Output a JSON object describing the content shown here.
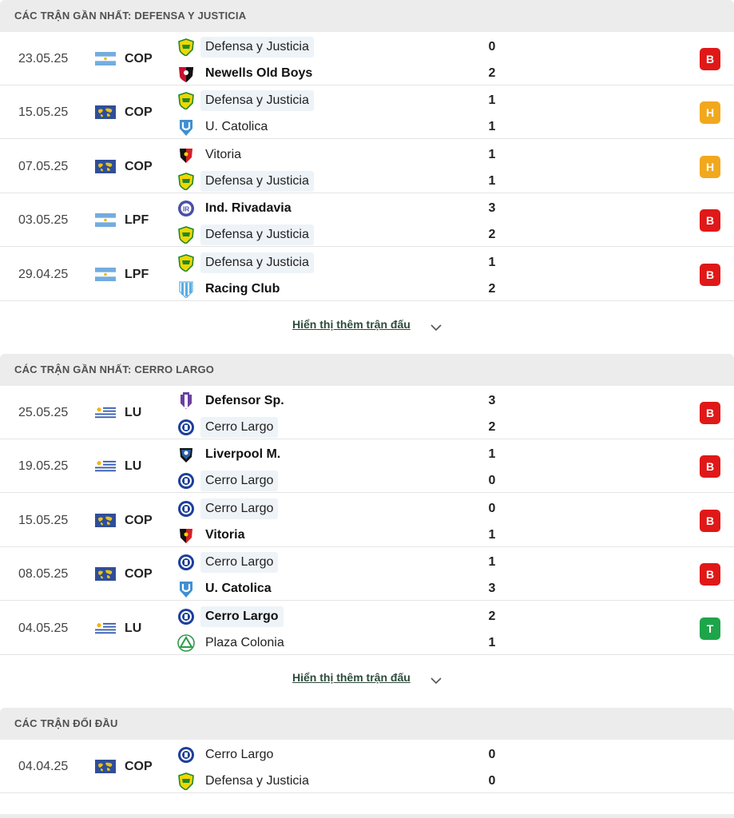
{
  "sections": [
    {
      "title": "CÁC TRẬN GẦN NHẤT: DEFENSA Y JUSTICIA",
      "show_more": "Hiển thị thêm trận đấu",
      "matches": [
        {
          "date": "23.05.25",
          "flag": "argentina-flag",
          "comp": "COP",
          "home": {
            "name": "Defensa y Justicia",
            "logo": "defensa-logo",
            "focus": true,
            "winner": false
          },
          "away": {
            "name": "Newells Old Boys",
            "logo": "newells-logo",
            "focus": false,
            "winner": true
          },
          "home_score": "0",
          "away_score": "2",
          "result": "B"
        },
        {
          "date": "15.05.25",
          "flag": "world-flag",
          "comp": "COP",
          "home": {
            "name": "Defensa y Justicia",
            "logo": "defensa-logo",
            "focus": true,
            "winner": false
          },
          "away": {
            "name": "U. Catolica",
            "logo": "catolica-logo",
            "focus": false,
            "winner": false
          },
          "home_score": "1",
          "away_score": "1",
          "result": "H"
        },
        {
          "date": "07.05.25",
          "flag": "world-flag",
          "comp": "COP",
          "home": {
            "name": "Vitoria",
            "logo": "vitoria-logo",
            "focus": false,
            "winner": false
          },
          "away": {
            "name": "Defensa y Justicia",
            "logo": "defensa-logo",
            "focus": true,
            "winner": false
          },
          "home_score": "1",
          "away_score": "1",
          "result": "H"
        },
        {
          "date": "03.05.25",
          "flag": "argentina-flag",
          "comp": "LPF",
          "home": {
            "name": "Ind. Rivadavia",
            "logo": "rivadavia-logo",
            "focus": false,
            "winner": true
          },
          "away": {
            "name": "Defensa y Justicia",
            "logo": "defensa-logo",
            "focus": true,
            "winner": false
          },
          "home_score": "3",
          "away_score": "2",
          "result": "B"
        },
        {
          "date": "29.04.25",
          "flag": "argentina-flag",
          "comp": "LPF",
          "home": {
            "name": "Defensa y Justicia",
            "logo": "defensa-logo",
            "focus": true,
            "winner": false
          },
          "away": {
            "name": "Racing Club",
            "logo": "racing-logo",
            "focus": false,
            "winner": true
          },
          "home_score": "1",
          "away_score": "2",
          "result": "B"
        }
      ]
    },
    {
      "title": "CÁC TRẬN GẦN NHẤT: CERRO LARGO",
      "show_more": "Hiển thị thêm trận đấu",
      "matches": [
        {
          "date": "25.05.25",
          "flag": "uruguay-flag",
          "comp": "LU",
          "home": {
            "name": "Defensor Sp.",
            "logo": "defensor-logo",
            "focus": false,
            "winner": true
          },
          "away": {
            "name": "Cerro Largo",
            "logo": "cerro-logo",
            "focus": true,
            "winner": false
          },
          "home_score": "3",
          "away_score": "2",
          "result": "B"
        },
        {
          "date": "19.05.25",
          "flag": "uruguay-flag",
          "comp": "LU",
          "home": {
            "name": "Liverpool M.",
            "logo": "liverpool-logo",
            "focus": false,
            "winner": true
          },
          "away": {
            "name": "Cerro Largo",
            "logo": "cerro-logo",
            "focus": true,
            "winner": false
          },
          "home_score": "1",
          "away_score": "0",
          "result": "B"
        },
        {
          "date": "15.05.25",
          "flag": "world-flag",
          "comp": "COP",
          "home": {
            "name": "Cerro Largo",
            "logo": "cerro-logo",
            "focus": true,
            "winner": false
          },
          "away": {
            "name": "Vitoria",
            "logo": "vitoria-logo",
            "focus": false,
            "winner": true
          },
          "home_score": "0",
          "away_score": "1",
          "result": "B"
        },
        {
          "date": "08.05.25",
          "flag": "world-flag",
          "comp": "COP",
          "home": {
            "name": "Cerro Largo",
            "logo": "cerro-logo",
            "focus": true,
            "winner": false
          },
          "away": {
            "name": "U. Catolica",
            "logo": "catolica-logo",
            "focus": false,
            "winner": true
          },
          "home_score": "1",
          "away_score": "3",
          "result": "B"
        },
        {
          "date": "04.05.25",
          "flag": "uruguay-flag",
          "comp": "LU",
          "home": {
            "name": "Cerro Largo",
            "logo": "cerro-logo",
            "focus": true,
            "winner": true
          },
          "away": {
            "name": "Plaza Colonia",
            "logo": "plaza-logo",
            "focus": false,
            "winner": false
          },
          "home_score": "2",
          "away_score": "1",
          "result": "T"
        }
      ]
    },
    {
      "title": "CÁC TRẬN ĐỐI ĐẦU",
      "show_more": "",
      "matches": [
        {
          "date": "04.04.25",
          "flag": "world-flag",
          "comp": "COP",
          "home": {
            "name": "Cerro Largo",
            "logo": "cerro-logo",
            "focus": false,
            "winner": false
          },
          "away": {
            "name": "Defensa y Justicia",
            "logo": "defensa-logo",
            "focus": false,
            "winner": false
          },
          "home_score": "0",
          "away_score": "0",
          "result": ""
        }
      ]
    }
  ],
  "colors": {
    "loss": "#e01818",
    "draw": "#f2a81d",
    "win": "#1ea54a"
  }
}
